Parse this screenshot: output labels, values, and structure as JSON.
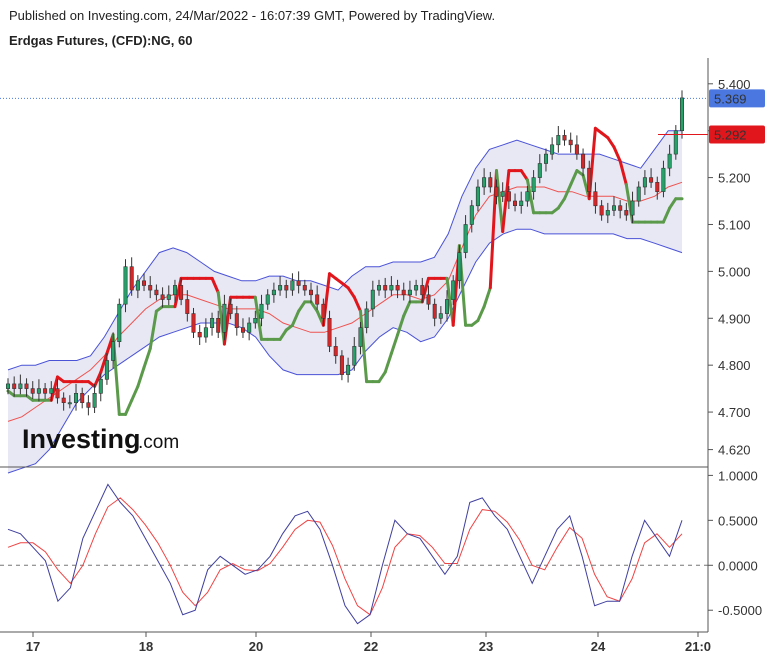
{
  "header": {
    "published": "Published on Investing.com, 24/Mar/2022 - 16:07:39 GMT, Powered by TradingView.",
    "instrument": "Erdgas Futures, (CFD):NG, 60"
  },
  "logo": {
    "word": "Investing",
    "suffix": ".com"
  },
  "colors": {
    "up": "#26a269",
    "down": "#d62728",
    "band_fill": "#e4e6f3",
    "band_line": "#4a52d6",
    "ma": "#ef5350",
    "stop_up": "#5b9a4a",
    "stop_down": "#e0161c",
    "last_price_bg": "#4a78e0",
    "stop_price_bg": "#e0161c",
    "osc_fast": "#3f3f9e",
    "osc_slow": "#ef4444"
  },
  "chart_data": [
    {
      "type": "candlestick",
      "title": "Erdgas Futures, (CFD):NG, 60",
      "x_labels": [
        "17",
        "18",
        "20",
        "22",
        "23",
        "24",
        "21:0"
      ],
      "y_ticks": [
        "5.400",
        "5.300",
        "5.200",
        "5.100",
        "5.000",
        "4.900",
        "4.800",
        "4.700",
        "4.620"
      ],
      "ylim": [
        4.585,
        5.455
      ],
      "last_price": "5.369",
      "stop_price": "5.292",
      "candles_close": [
        4.76,
        4.75,
        4.76,
        4.75,
        4.74,
        4.75,
        4.74,
        4.75,
        4.73,
        4.72,
        4.72,
        4.74,
        4.72,
        4.71,
        4.74,
        4.77,
        4.81,
        4.85,
        4.93,
        5.01,
        4.96,
        4.98,
        4.97,
        4.96,
        4.95,
        4.94,
        4.95,
        4.97,
        4.94,
        4.91,
        4.87,
        4.86,
        4.88,
        4.9,
        4.87,
        4.93,
        4.91,
        4.88,
        4.87,
        4.89,
        4.9,
        4.93,
        4.95,
        4.96,
        4.97,
        4.96,
        4.98,
        4.97,
        4.96,
        4.95,
        4.93,
        4.9,
        4.84,
        4.82,
        4.78,
        4.8,
        4.84,
        4.88,
        4.92,
        4.96,
        4.97,
        4.96,
        4.97,
        4.96,
        4.95,
        4.96,
        4.97,
        4.95,
        4.93,
        4.9,
        4.91,
        4.94,
        4.98,
        5.04,
        5.1,
        5.14,
        5.18,
        5.2,
        5.18,
        5.16,
        5.17,
        5.15,
        5.14,
        5.15,
        5.17,
        5.2,
        5.23,
        5.25,
        5.27,
        5.29,
        5.28,
        5.27,
        5.25,
        5.22,
        5.17,
        5.14,
        5.12,
        5.13,
        5.14,
        5.13,
        5.12,
        5.15,
        5.18,
        5.2,
        5.19,
        5.17,
        5.22,
        5.25,
        5.3,
        5.37
      ],
      "upper_band": [
        4.79,
        4.8,
        4.8,
        4.81,
        4.81,
        4.81,
        4.82,
        4.86,
        4.91,
        4.96,
        5.0,
        5.04,
        5.05,
        5.04,
        5.02,
        5.0,
        4.99,
        4.98,
        4.98,
        4.99,
        4.99,
        4.98,
        4.98,
        4.97,
        4.96,
        4.99,
        5.01,
        5.01,
        5.02,
        5.02,
        5.02,
        5.03,
        5.08,
        5.16,
        5.22,
        5.26,
        5.27,
        5.28,
        5.27,
        5.26,
        5.25,
        5.25,
        5.25,
        5.25,
        5.24,
        5.23,
        5.22,
        5.26,
        5.3,
        5.3
      ],
      "lower_band": [
        4.57,
        4.58,
        4.59,
        4.62,
        4.67,
        4.72,
        4.75,
        4.78,
        4.8,
        4.82,
        4.84,
        4.86,
        4.87,
        4.88,
        4.89,
        4.89,
        4.89,
        4.88,
        4.86,
        4.82,
        4.79,
        4.78,
        4.78,
        4.78,
        4.78,
        4.79,
        4.83,
        4.86,
        4.88,
        4.87,
        4.85,
        4.86,
        4.9,
        4.96,
        5.02,
        5.06,
        5.08,
        5.09,
        5.09,
        5.08,
        5.08,
        5.08,
        5.08,
        5.08,
        5.08,
        5.07,
        5.07,
        5.06,
        5.05,
        5.04
      ],
      "moving_average": [
        4.68,
        4.69,
        4.71,
        4.73,
        4.75,
        4.77,
        4.79,
        4.82,
        4.86,
        4.89,
        4.92,
        4.94,
        4.95,
        4.95,
        4.94,
        4.93,
        4.92,
        4.92,
        4.92,
        4.91,
        4.89,
        4.88,
        4.87,
        4.87,
        4.88,
        4.89,
        4.91,
        4.93,
        4.95,
        4.95,
        4.94,
        4.95,
        4.98,
        5.05,
        5.12,
        5.16,
        5.17,
        5.18,
        5.18,
        5.18,
        5.17,
        5.17,
        5.16,
        5.16,
        5.16,
        5.15,
        5.15,
        5.16,
        5.18,
        5.19
      ]
    },
    {
      "type": "line",
      "y_ticks": [
        "1.0000",
        "0.5000",
        "0.0000",
        "-0.5000"
      ],
      "ylim": [
        -0.72,
        1.06
      ],
      "series": [
        {
          "values": [
            0.4,
            0.35,
            0.2,
            0.05,
            -0.4,
            -0.25,
            0.3,
            0.6,
            0.9,
            0.7,
            0.55,
            0.3,
            0.05,
            -0.2,
            -0.55,
            -0.5,
            -0.05,
            0.1,
            0.0,
            -0.1,
            -0.05,
            0.1,
            0.35,
            0.55,
            0.6,
            0.4,
            0.0,
            -0.45,
            -0.65,
            -0.55,
            0.0,
            0.5,
            0.35,
            0.3,
            0.1,
            -0.1,
            0.1,
            0.7,
            0.75,
            0.55,
            0.4,
            0.1,
            -0.2,
            0.1,
            0.4,
            0.55,
            0.1,
            -0.45,
            -0.4,
            -0.4,
            0.1,
            0.5,
            0.3,
            0.1,
            0.5
          ]
        },
        {
          "values": [
            0.2,
            0.25,
            0.25,
            0.15,
            -0.05,
            -0.2,
            0.0,
            0.35,
            0.65,
            0.75,
            0.62,
            0.45,
            0.25,
            0.0,
            -0.3,
            -0.45,
            -0.3,
            -0.05,
            0.02,
            -0.05,
            -0.06,
            0.02,
            0.2,
            0.4,
            0.5,
            0.48,
            0.22,
            -0.15,
            -0.45,
            -0.55,
            -0.25,
            0.2,
            0.35,
            0.33,
            0.2,
            0.02,
            0.02,
            0.4,
            0.62,
            0.6,
            0.48,
            0.28,
            0.0,
            -0.05,
            0.2,
            0.42,
            0.3,
            -0.1,
            -0.35,
            -0.4,
            -0.15,
            0.25,
            0.35,
            0.2,
            0.35
          ]
        }
      ]
    }
  ]
}
